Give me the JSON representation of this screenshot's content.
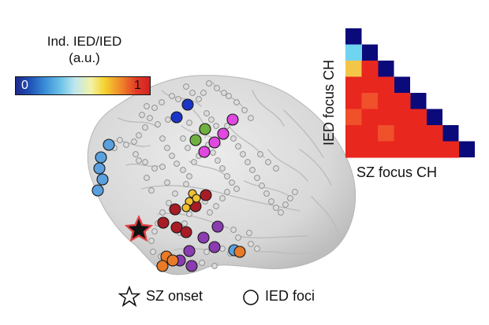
{
  "colorbar": {
    "title_line1": "Ind. IED/IED",
    "title_line2": "(a.u.)",
    "tick_min": "0",
    "tick_max": "1"
  },
  "matrix": {
    "y_label": "IED focus CH",
    "x_label": "SZ focus CH",
    "size": 8,
    "diagonal_color": "#0a0a7a",
    "cells": [
      [
        1,
        1,
        "#6fd4f0"
      ],
      [
        2,
        1,
        "#f3c64a"
      ],
      [
        2,
        2,
        "#e8271f"
      ],
      [
        3,
        1,
        "#e8271f"
      ],
      [
        3,
        2,
        "#e8271f"
      ],
      [
        3,
        3,
        "#e8271f"
      ],
      [
        4,
        1,
        "#e8271f"
      ],
      [
        4,
        2,
        "#f0502a"
      ],
      [
        4,
        3,
        "#e8271f"
      ],
      [
        4,
        4,
        "#e8271f"
      ],
      [
        5,
        1,
        "#f0502a"
      ],
      [
        5,
        2,
        "#e8271f"
      ],
      [
        5,
        3,
        "#e8271f"
      ],
      [
        5,
        4,
        "#e8271f"
      ],
      [
        5,
        5,
        "#e8271f"
      ],
      [
        6,
        1,
        "#e8271f"
      ],
      [
        6,
        2,
        "#e8271f"
      ],
      [
        6,
        3,
        "#f0502a"
      ],
      [
        6,
        4,
        "#e8271f"
      ],
      [
        6,
        5,
        "#e8271f"
      ],
      [
        6,
        6,
        "#e8271f"
      ],
      [
        7,
        1,
        "#e8271f"
      ],
      [
        7,
        2,
        "#e8271f"
      ],
      [
        7,
        3,
        "#e8271f"
      ],
      [
        7,
        4,
        "#e8271f"
      ],
      [
        7,
        5,
        "#e8271f"
      ],
      [
        7,
        6,
        "#e8271f"
      ],
      [
        7,
        7,
        "#e8271f"
      ]
    ]
  },
  "legend": {
    "onset_label": "SZ onset",
    "foci_label": "IED foci"
  },
  "colors": {
    "brain": "#d9d9d9",
    "electrode_grey": "#dcdcdc",
    "onset_star": "#111111",
    "onset_glow": "#e3262a"
  },
  "foci_groups": [
    {
      "color": "#1a35c8",
      "count": 2
    },
    {
      "color": "#e048e0",
      "count": 4
    },
    {
      "color": "#70b040",
      "count": 2
    },
    {
      "color": "#5aa0de",
      "count": 6
    },
    {
      "color": "#a81c26",
      "count": 6
    },
    {
      "color": "#f0c030",
      "count": 4
    },
    {
      "color": "#8a3cb0",
      "count": 6
    },
    {
      "color": "#e87a28",
      "count": 4
    }
  ]
}
